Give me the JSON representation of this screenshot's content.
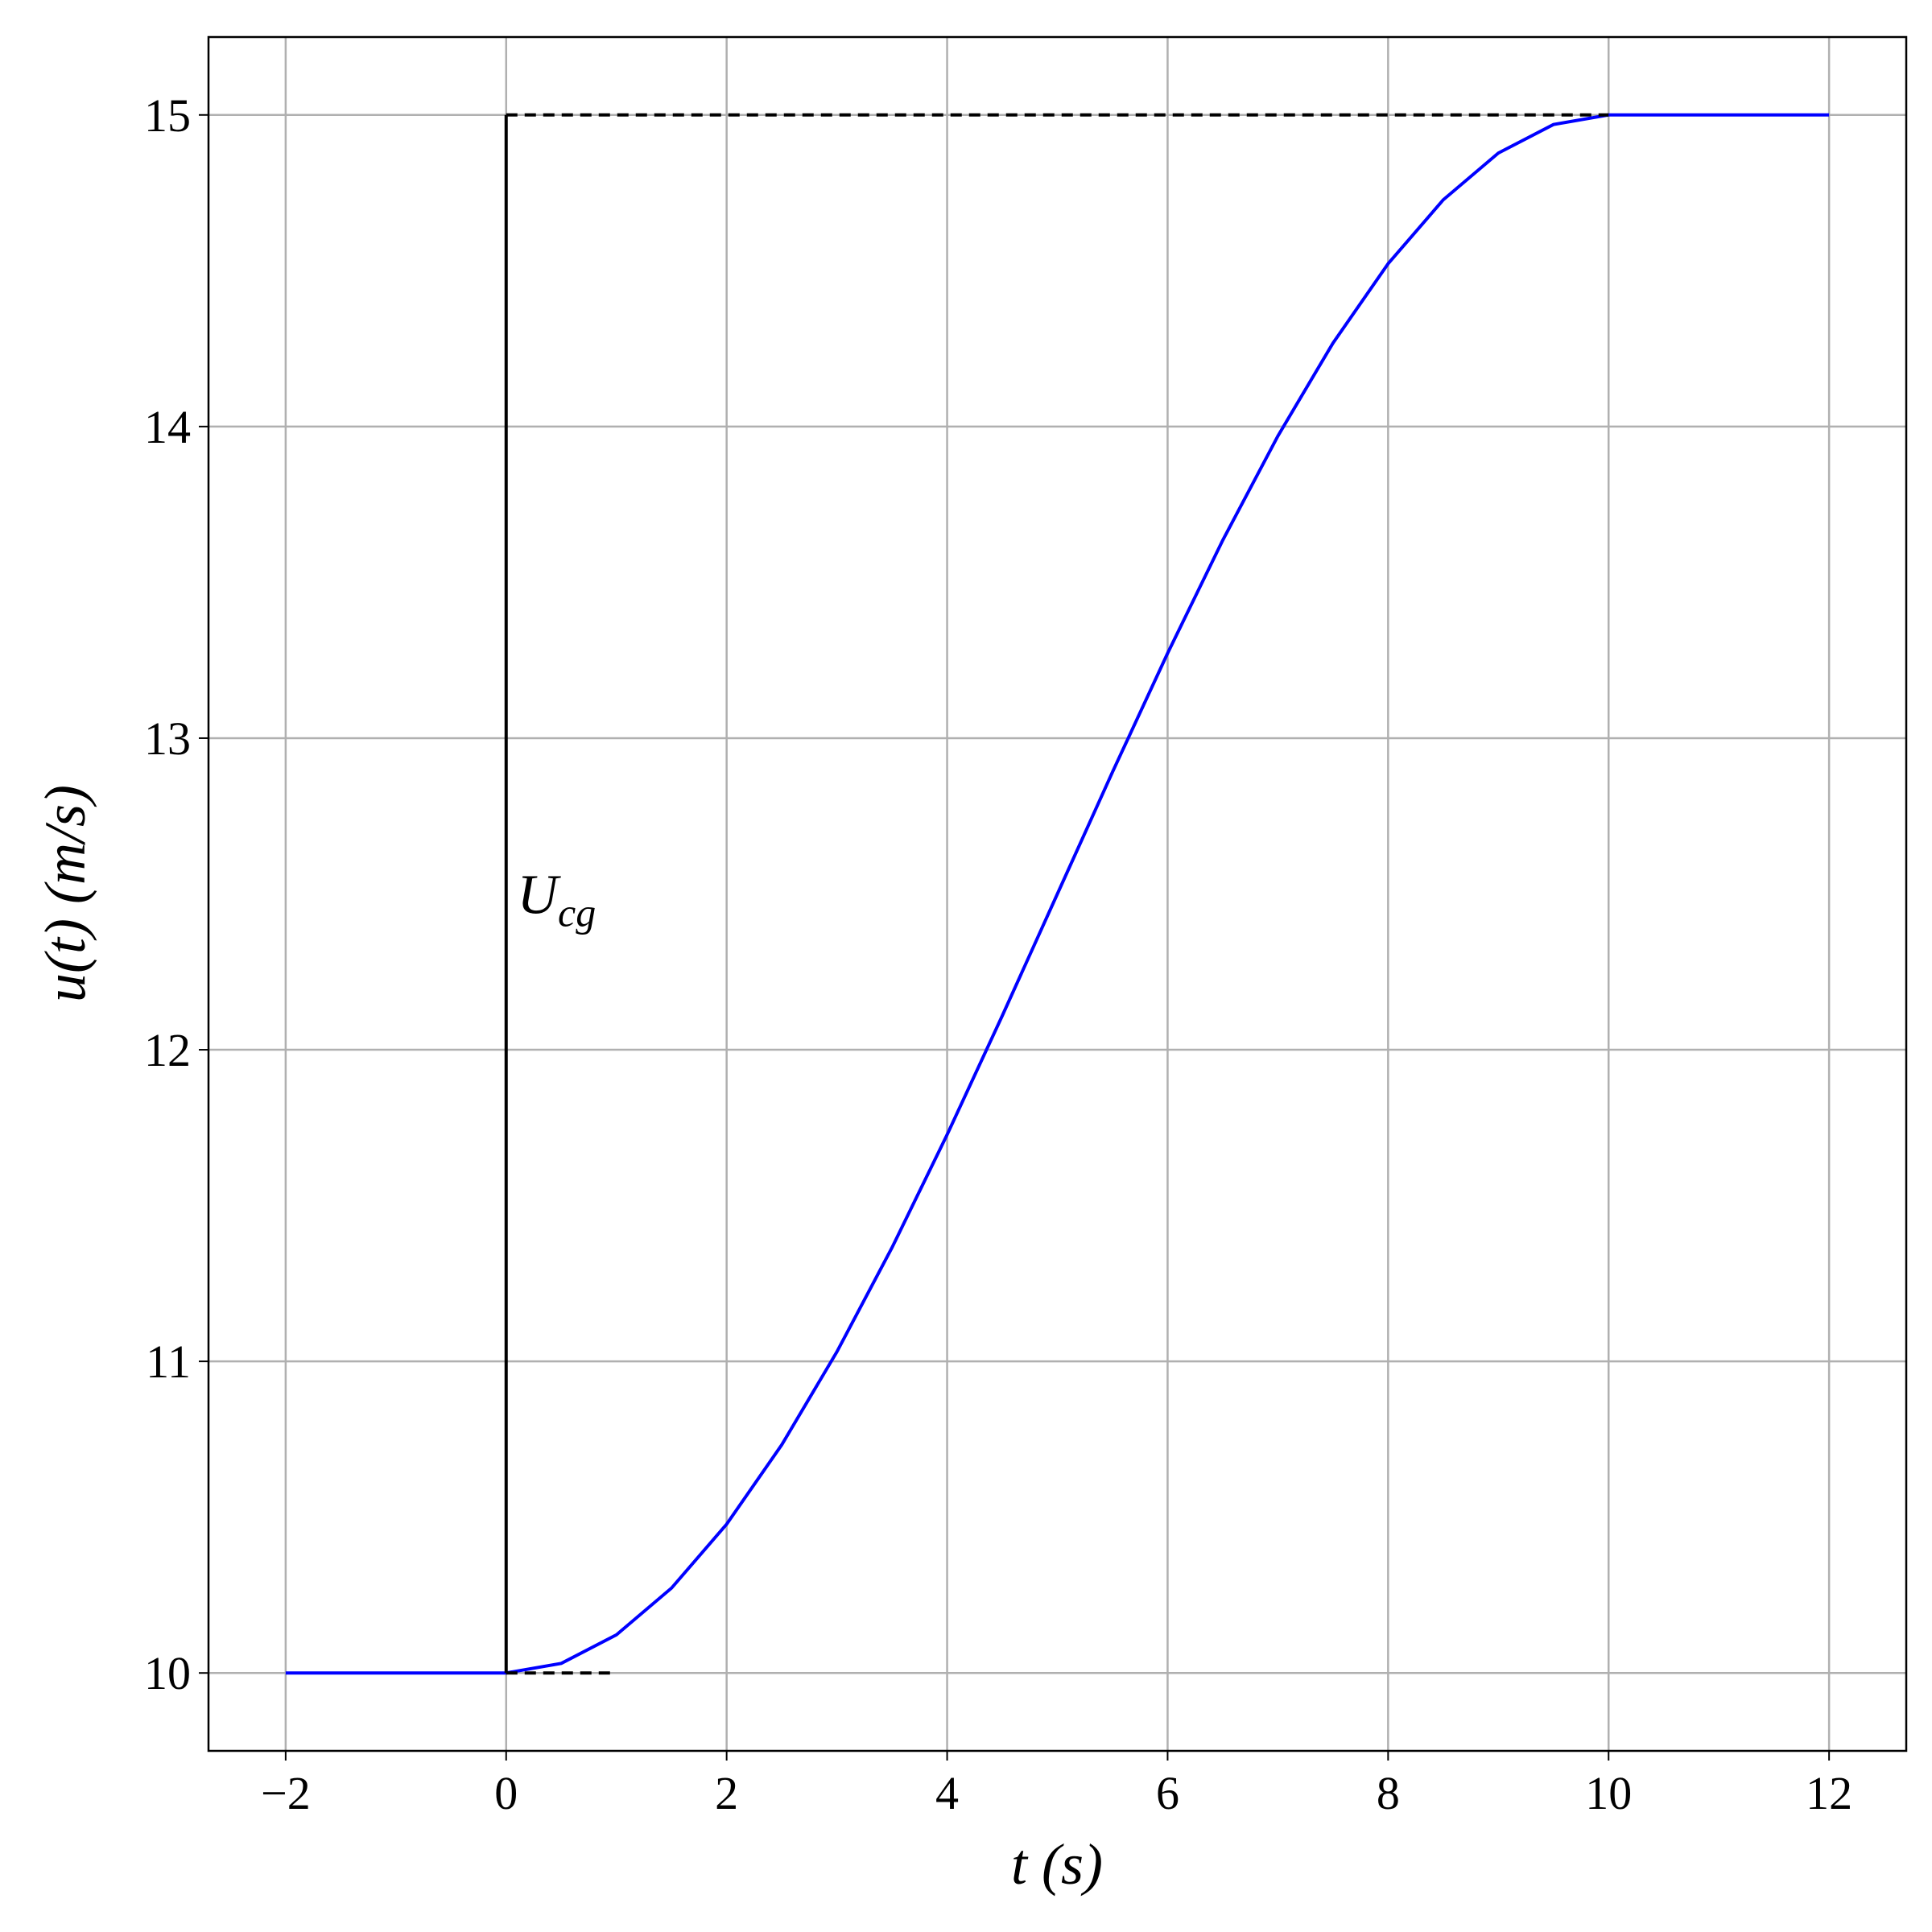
{
  "chart_data": {
    "type": "line",
    "x_label": "t (s)",
    "y_label": "u(t) (m/s)",
    "xlim": [
      -2.7,
      12.7
    ],
    "ylim": [
      9.75,
      15.25
    ],
    "xticks": [
      {
        "value": -2,
        "label": "−2"
      },
      0,
      2,
      4,
      6,
      8,
      10,
      12
    ],
    "yticks": [
      10,
      11,
      12,
      13,
      14,
      15
    ],
    "grid": true,
    "annotation": {
      "text": "U",
      "subscript": "cg",
      "x": 0.1,
      "y": 12.5
    },
    "series": [
      {
        "color": "#0000ff",
        "dashed": false,
        "x": [
          -2,
          0,
          0.5,
          1,
          1.5,
          2,
          2.5,
          3,
          3.5,
          4,
          4.5,
          5,
          5.5,
          6,
          6.5,
          7,
          7.5,
          8,
          8.5,
          9,
          9.5,
          10,
          12
        ],
        "values": [
          10,
          10,
          10.0308,
          10.1224,
          10.2725,
          10.4775,
          10.7322,
          11.0305,
          11.365,
          11.7275,
          12.1089,
          12.5,
          12.8911,
          13.2725,
          13.635,
          13.9695,
          14.2678,
          14.5225,
          14.7275,
          14.8776,
          14.9692,
          15,
          15
        ]
      },
      {
        "color": "#000000",
        "dashed": false,
        "x": [
          0,
          0
        ],
        "values": [
          10,
          15
        ]
      },
      {
        "color": "#000000",
        "dashed": true,
        "x": [
          0,
          10
        ],
        "values": [
          15,
          15
        ]
      },
      {
        "color": "#000000",
        "dashed": true,
        "x": [
          0,
          1
        ],
        "values": [
          10,
          10
        ]
      }
    ]
  }
}
